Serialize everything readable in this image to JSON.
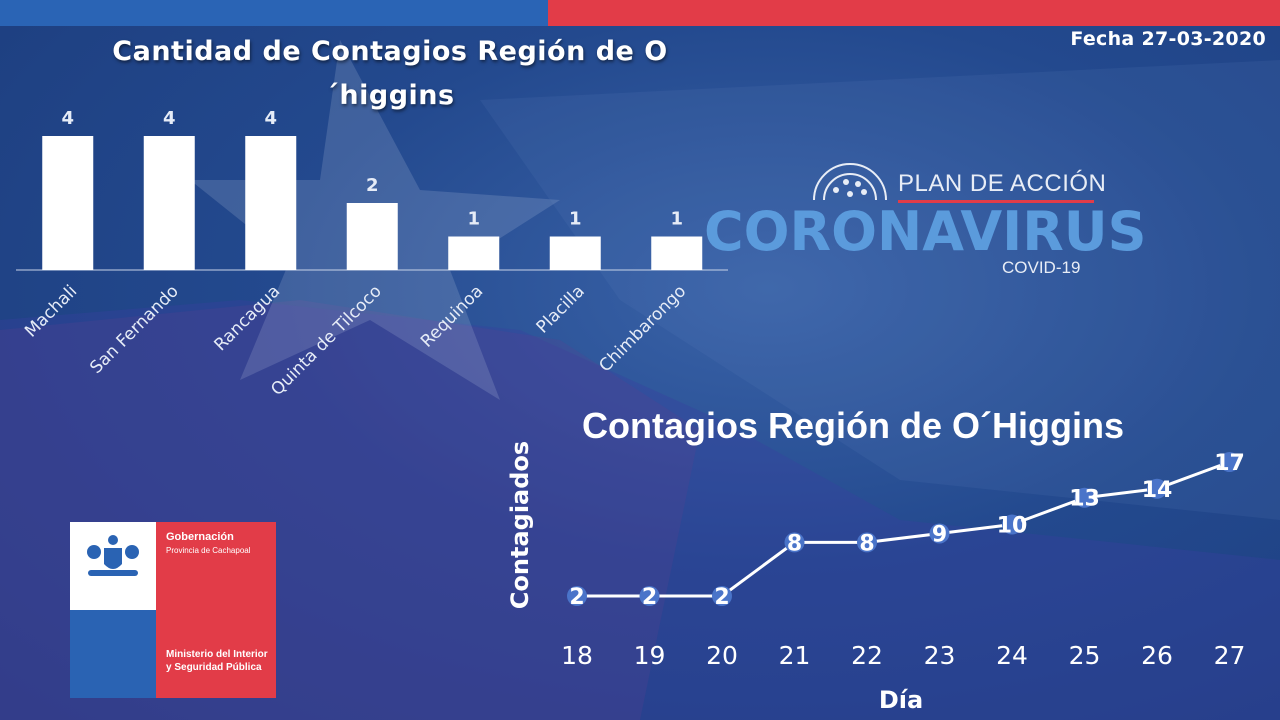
{
  "header": {
    "date": "Fecha 27-03-2020"
  },
  "colors": {
    "background": "#23498e",
    "top_bar_blue": "#2a64b5",
    "top_bar_red": "#e23c48",
    "bar_fill": "#ffffff",
    "marker": "#4a74c9",
    "corona_text": "#5b9bdc"
  },
  "logo": {
    "plan": "PLAN DE ACCIÓN",
    "corona": "CORONAVIRUS",
    "covid": "COVID-19",
    "icon": "virus-icon"
  },
  "gov": {
    "title": "Gobernación",
    "subtitle": "Provincia de Cachapoal",
    "ministry": "Ministerio del Interior y Seguridad Pública",
    "icon": "coat-of-arms-icon"
  },
  "chart_data": [
    {
      "type": "bar",
      "title": "Cantidad de Contagios Región de O´higgins",
      "categories": [
        "Machali",
        "San Fernando",
        "Rancagua",
        "Quinta de Tilcoco",
        "Requinoa",
        "Placilla",
        "Chimbarongo"
      ],
      "values": [
        4,
        4,
        4,
        2,
        1,
        1,
        1
      ],
      "ylim": [
        0,
        4
      ],
      "grid": false,
      "data_labels": true
    },
    {
      "type": "line",
      "title": "Contagios Región de O´Higgins",
      "xlabel": "Día",
      "ylabel": "Contagiados",
      "x": [
        "18",
        "19",
        "20",
        "21",
        "22",
        "23",
        "24",
        "25",
        "26",
        "27"
      ],
      "values": [
        2,
        2,
        2,
        8,
        8,
        9,
        10,
        13,
        14,
        17
      ],
      "ylim": [
        2,
        17
      ],
      "grid": false,
      "data_labels": true
    }
  ]
}
